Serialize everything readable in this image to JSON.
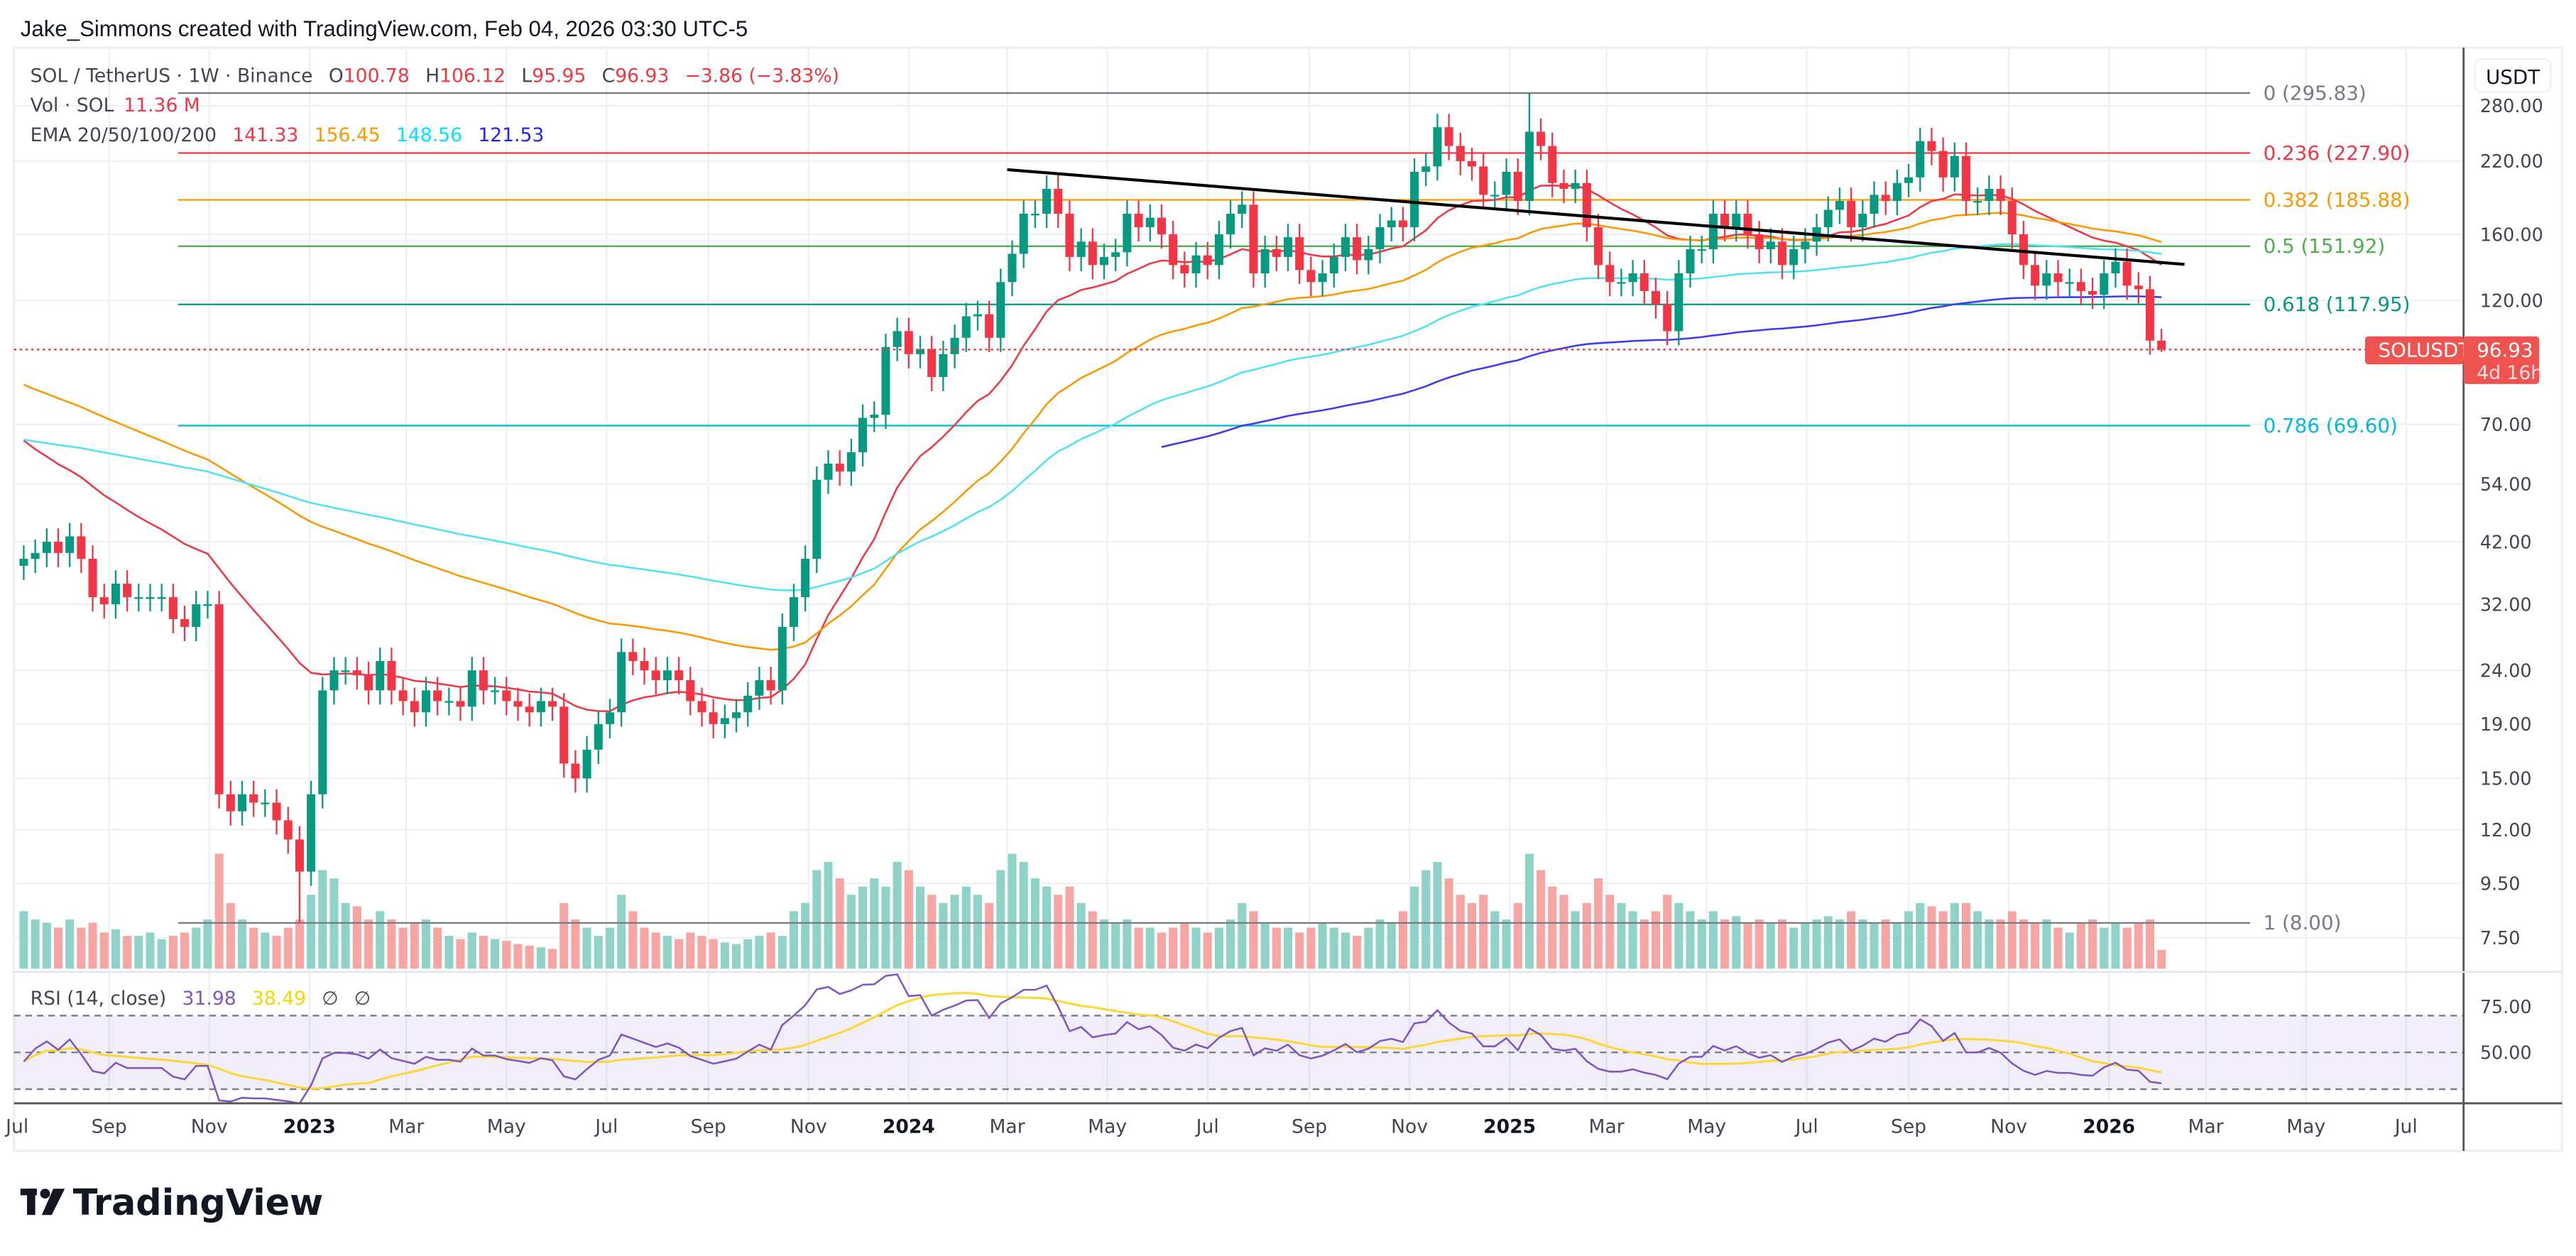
{
  "header": {
    "title": "Jake_Simmons created with TradingView.com, Feb 04, 2026 03:30 UTC-5"
  },
  "legend": {
    "symbol": "SOL / TetherUS · 1W · Binance",
    "o_label": "O",
    "o": "100.78",
    "h_label": "H",
    "h": "106.12",
    "l_label": "L",
    "l": "95.95",
    "c_label": "C",
    "c": "96.93",
    "change": "−3.86 (−3.83%)",
    "vol_label": "Vol · SOL",
    "vol": "11.36 M",
    "ema_label": "EMA 20/50/100/200",
    "ema20": "141.33",
    "ema50": "156.45",
    "ema100": "148.56",
    "ema200": "121.53",
    "rsi_label": "RSI (14, close)",
    "rsi": "31.98",
    "rsi_ma": "38.49",
    "rsi_na1": "∅",
    "rsi_na2": "∅"
  },
  "price_axis": {
    "currency": "USDT",
    "ticks": [
      "280.00",
      "220.00",
      "160.00",
      "120.00",
      "70.00",
      "54.00",
      "42.00",
      "32.00",
      "24.00",
      "19.00",
      "15.00",
      "12.00",
      "9.50",
      "7.50"
    ],
    "rsi_ticks": [
      "75.00",
      "50.00"
    ],
    "last_price": "96.93",
    "countdown": "4d 16h",
    "symbol_tag": "SOLUSDT"
  },
  "time_axis": [
    {
      "label": "Jul",
      "date": "2022-07-01"
    },
    {
      "label": "Sep",
      "date": "2022-09-01"
    },
    {
      "label": "Nov",
      "date": "2022-11-01"
    },
    {
      "label": "2023",
      "date": "2023-01-01",
      "year": true
    },
    {
      "label": "Mar",
      "date": "2023-03-01"
    },
    {
      "label": "May",
      "date": "2023-05-01"
    },
    {
      "label": "Jul",
      "date": "2023-07-01"
    },
    {
      "label": "Sep",
      "date": "2023-09-01"
    },
    {
      "label": "Nov",
      "date": "2023-11-01"
    },
    {
      "label": "2024",
      "date": "2024-01-01",
      "year": true
    },
    {
      "label": "Mar",
      "date": "2024-03-01"
    },
    {
      "label": "May",
      "date": "2024-05-01"
    },
    {
      "label": "Jul",
      "date": "2024-07-01"
    },
    {
      "label": "Sep",
      "date": "2024-09-01"
    },
    {
      "label": "Nov",
      "date": "2024-11-01"
    },
    {
      "label": "2025",
      "date": "2025-01-01",
      "year": true
    },
    {
      "label": "Mar",
      "date": "2025-03-01"
    },
    {
      "label": "May",
      "date": "2025-05-01"
    },
    {
      "label": "Jul",
      "date": "2025-07-01"
    },
    {
      "label": "Sep",
      "date": "2025-09-01"
    },
    {
      "label": "Nov",
      "date": "2025-11-01"
    },
    {
      "label": "2026",
      "date": "2026-01-01",
      "year": true
    },
    {
      "label": "Mar",
      "date": "2026-03-01"
    },
    {
      "label": "May",
      "date": "2026-05-01"
    },
    {
      "label": "Jul",
      "date": "2026-07-01"
    }
  ],
  "fib_levels": [
    {
      "label": "0 (295.83)",
      "price": 295.83,
      "color": "#787b86"
    },
    {
      "label": "0.236 (227.90)",
      "price": 227.9,
      "color": "#f23645"
    },
    {
      "label": "0.382 (185.88)",
      "price": 185.88,
      "color": "#ff9800"
    },
    {
      "label": "0.5 (151.92)",
      "price": 151.92,
      "color": "#4caf50"
    },
    {
      "label": "0.618 (117.95)",
      "price": 117.95,
      "color": "#089981"
    },
    {
      "label": "0.786 (69.60)",
      "price": 69.6,
      "color": "#00bcd4"
    },
    {
      "label": "1 (8.00)",
      "price": 8.0,
      "color": "#787b86"
    }
  ],
  "watermark": "TradingView",
  "colors": {
    "up": "#089981",
    "down": "#f23645",
    "vol_up": "#8fd3c8",
    "vol_down": "#f7a5a2",
    "ema20": "#f23645",
    "ema50": "#ff9800",
    "ema100": "#4fe3ef",
    "ema200": "#3c3cf0",
    "rsi": "#7e57c2",
    "rsi_ma": "#fdd835",
    "trendline": "#000000"
  },
  "chart_data": {
    "type": "candlestick",
    "symbol": "SOLUSDT",
    "interval": "1W",
    "scale": "log",
    "ylim": [
      7,
      300
    ],
    "start_week": "2022-07-11",
    "closes": [
      39,
      40,
      42,
      40,
      43,
      39,
      33,
      32,
      35,
      33,
      33,
      33,
      33,
      30,
      29,
      32,
      32,
      14,
      13,
      14,
      13.5,
      13.5,
      12.5,
      11.5,
      10,
      14,
      22,
      24,
      24,
      23.5,
      22,
      25,
      22,
      21,
      20,
      22,
      21,
      21,
      20.5,
      24,
      22,
      22,
      21,
      20.5,
      20,
      21,
      20.5,
      16,
      15,
      17,
      19,
      20,
      26,
      25,
      24,
      23,
      24,
      23,
      21,
      20,
      19,
      19.5,
      20,
      21.5,
      23,
      22,
      29,
      33,
      39,
      55,
      59,
      57,
      62,
      72,
      73,
      98,
      105,
      95,
      97,
      86,
      95,
      102,
      112,
      113,
      102,
      130,
      147,
      175,
      175,
      195,
      175,
      145,
      155,
      140,
      145,
      148,
      175,
      165,
      172,
      160,
      140,
      135,
      146,
      140,
      160,
      175,
      182,
      135,
      150,
      145,
      158,
      137,
      130,
      135,
      145,
      158,
      143,
      150,
      165,
      170,
      165,
      210,
      215,
      255,
      235,
      220,
      215,
      190,
      190,
      210,
      185,
      250,
      235,
      200,
      195,
      200,
      165,
      140,
      130,
      130,
      135,
      125,
      118,
      105,
      135,
      150,
      150,
      175,
      165,
      175,
      160,
      150,
      155,
      140,
      150,
      155,
      165,
      178,
      185,
      165,
      175,
      190,
      185,
      200,
      205,
      240,
      230,
      205,
      225,
      185,
      185,
      195,
      185,
      160,
      140,
      128,
      135,
      130,
      130,
      125,
      123,
      135,
      142,
      128,
      126,
      100.78,
      96.93
    ],
    "last_candle": {
      "open": 100.78,
      "high": 106.12,
      "low": 95.95,
      "close": 96.93
    },
    "wick_overrides": [
      {
        "date": "2025-01-13",
        "high": 295.83
      },
      {
        "date": "2022-12-26",
        "low": 8.0
      }
    ],
    "volume_millions": [
      35,
      30,
      28,
      25,
      30,
      25,
      28,
      22,
      24,
      20,
      20,
      22,
      18,
      20,
      22,
      25,
      30,
      70,
      40,
      30,
      25,
      22,
      20,
      25,
      30,
      45,
      60,
      55,
      40,
      38,
      30,
      35,
      30,
      25,
      28,
      30,
      25,
      20,
      18,
      22,
      20,
      18,
      17,
      15,
      14,
      13,
      12,
      40,
      30,
      25,
      20,
      25,
      45,
      35,
      25,
      22,
      20,
      18,
      22,
      20,
      18,
      16,
      15,
      18,
      20,
      22,
      20,
      35,
      40,
      60,
      65,
      55,
      45,
      50,
      55,
      50,
      65,
      60,
      50,
      45,
      40,
      45,
      50,
      45,
      40,
      60,
      70,
      65,
      55,
      50,
      45,
      50,
      40,
      35,
      30,
      28,
      30,
      25,
      25,
      22,
      25,
      28,
      25,
      22,
      25,
      30,
      40,
      35,
      28,
      25,
      25,
      22,
      25,
      28,
      25,
      22,
      20,
      25,
      30,
      28,
      35,
      50,
      60,
      65,
      55,
      45,
      40,
      45,
      35,
      30,
      40,
      70,
      60,
      50,
      45,
      35,
      40,
      55,
      45,
      40,
      35,
      30,
      35,
      45,
      40,
      35,
      30,
      35,
      30,
      32,
      28,
      30,
      28,
      30,
      25,
      28,
      30,
      32,
      30,
      35,
      30,
      28,
      30,
      28,
      35,
      40,
      38,
      35,
      40,
      40,
      35,
      30,
      30,
      35,
      30,
      28,
      30,
      25,
      22,
      28,
      30,
      25,
      28,
      25,
      28,
      30,
      11.36
    ],
    "ema_periods": [
      20,
      50,
      100,
      200
    ],
    "ema_start_values": [
      68,
      85,
      66,
      58
    ],
    "ema200_visible_from": "2024-06-03",
    "rsi": {
      "period": 14,
      "ma_period": 14,
      "levels": [
        70,
        50,
        30
      ],
      "ylim": [
        0,
        100
      ]
    },
    "trendline": [
      {
        "date": "2024-03-01",
        "price": 212
      },
      {
        "date": "2026-02-16",
        "price": 140.4
      }
    ]
  }
}
